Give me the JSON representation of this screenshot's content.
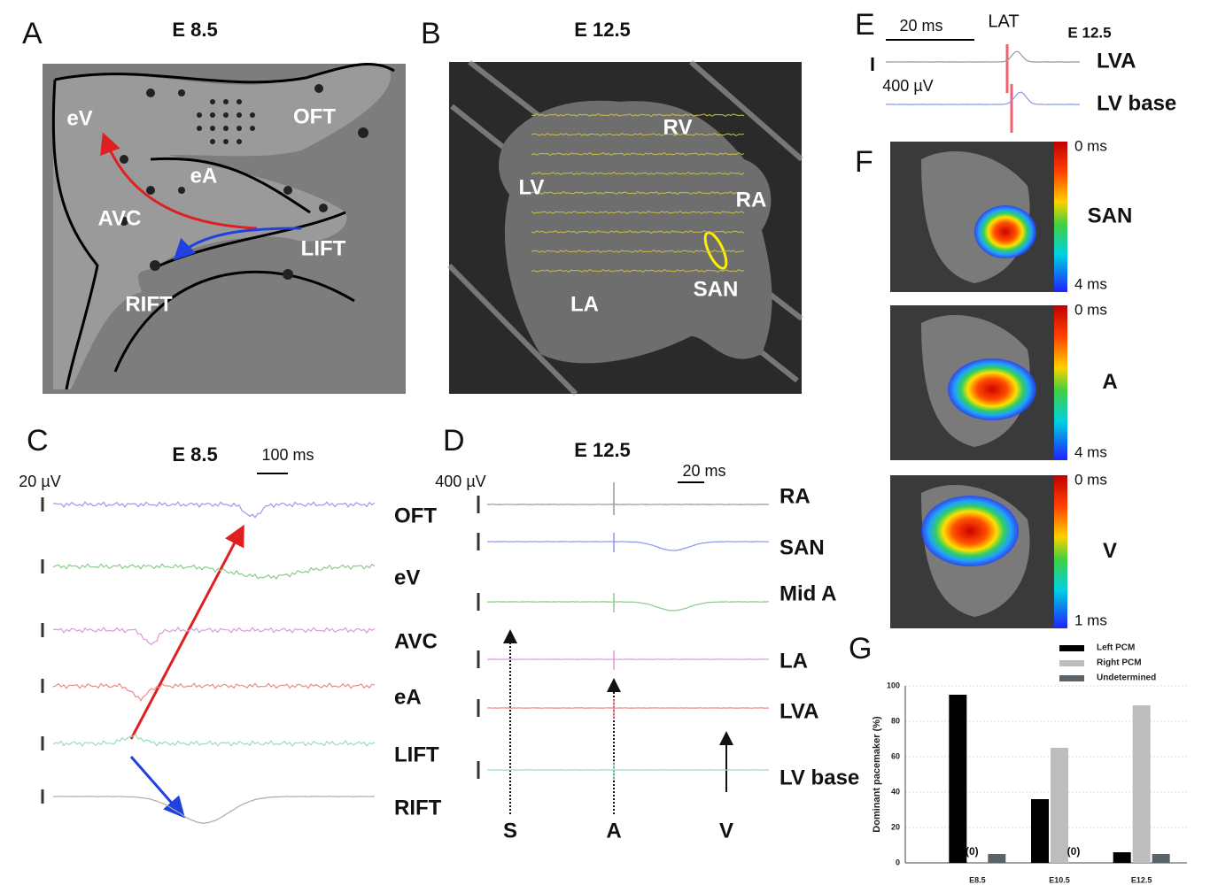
{
  "panels": {
    "A": {
      "letter": "A",
      "title": "E 8.5",
      "labels": [
        "eV",
        "OFT",
        "eA",
        "AVC",
        "LIFT",
        "RIFT"
      ]
    },
    "B": {
      "letter": "B",
      "title": "E 12.5",
      "labels": [
        "RV",
        "LV",
        "RA",
        "SAN",
        "LA"
      ]
    },
    "C": {
      "letter": "C",
      "title": "E 8.5",
      "scale_time": "100 ms",
      "scale_amp": "20 µV",
      "traces": [
        "OFT",
        "eV",
        "AVC",
        "eA",
        "LIFT",
        "RIFT"
      ]
    },
    "D": {
      "letter": "D",
      "title": "E 12.5",
      "scale_amp": "400 µV",
      "scale_time": "20 ms",
      "traces": [
        "RA",
        "SAN",
        "Mid A",
        "LA",
        "LVA",
        "LV base"
      ],
      "markers": [
        "S",
        "A",
        "V"
      ]
    },
    "E": {
      "letter": "E",
      "title": "E 12.5",
      "scale_time": "20 ms",
      "marker": "LAT",
      "scale_amp": "400 µV",
      "traces": [
        "LVA",
        "LV base"
      ]
    },
    "F": {
      "letter": "F",
      "maps": [
        {
          "label": "SAN",
          "top": "0 ms",
          "bottom": "4 ms"
        },
        {
          "label": "A",
          "top": "0 ms",
          "bottom": "4 ms"
        },
        {
          "label": "V",
          "top": "0 ms",
          "bottom": "1 ms"
        }
      ]
    },
    "G": {
      "letter": "G"
    }
  },
  "chart_data": {
    "type": "bar",
    "y_label": "Dominant pacemaker (%)",
    "categories": [
      "E8.5",
      "E10.5",
      "E12.5"
    ],
    "series": [
      {
        "name": "Left PCM",
        "color": "#000000",
        "values": [
          95,
          36,
          6
        ]
      },
      {
        "name": "Right PCM",
        "color": "#bdbdbd",
        "values": [
          0,
          65,
          89
        ],
        "value_labels": [
          "(0)",
          null,
          null
        ]
      },
      {
        "name": "Undetermined",
        "color": "#5a6468",
        "values": [
          5,
          0,
          5
        ],
        "value_labels": [
          null,
          "(0)",
          null
        ]
      }
    ],
    "ylim": [
      0,
      100
    ],
    "yticks": [
      0,
      20,
      40,
      60,
      80,
      100
    ],
    "grid": true,
    "legend": "top-right"
  }
}
